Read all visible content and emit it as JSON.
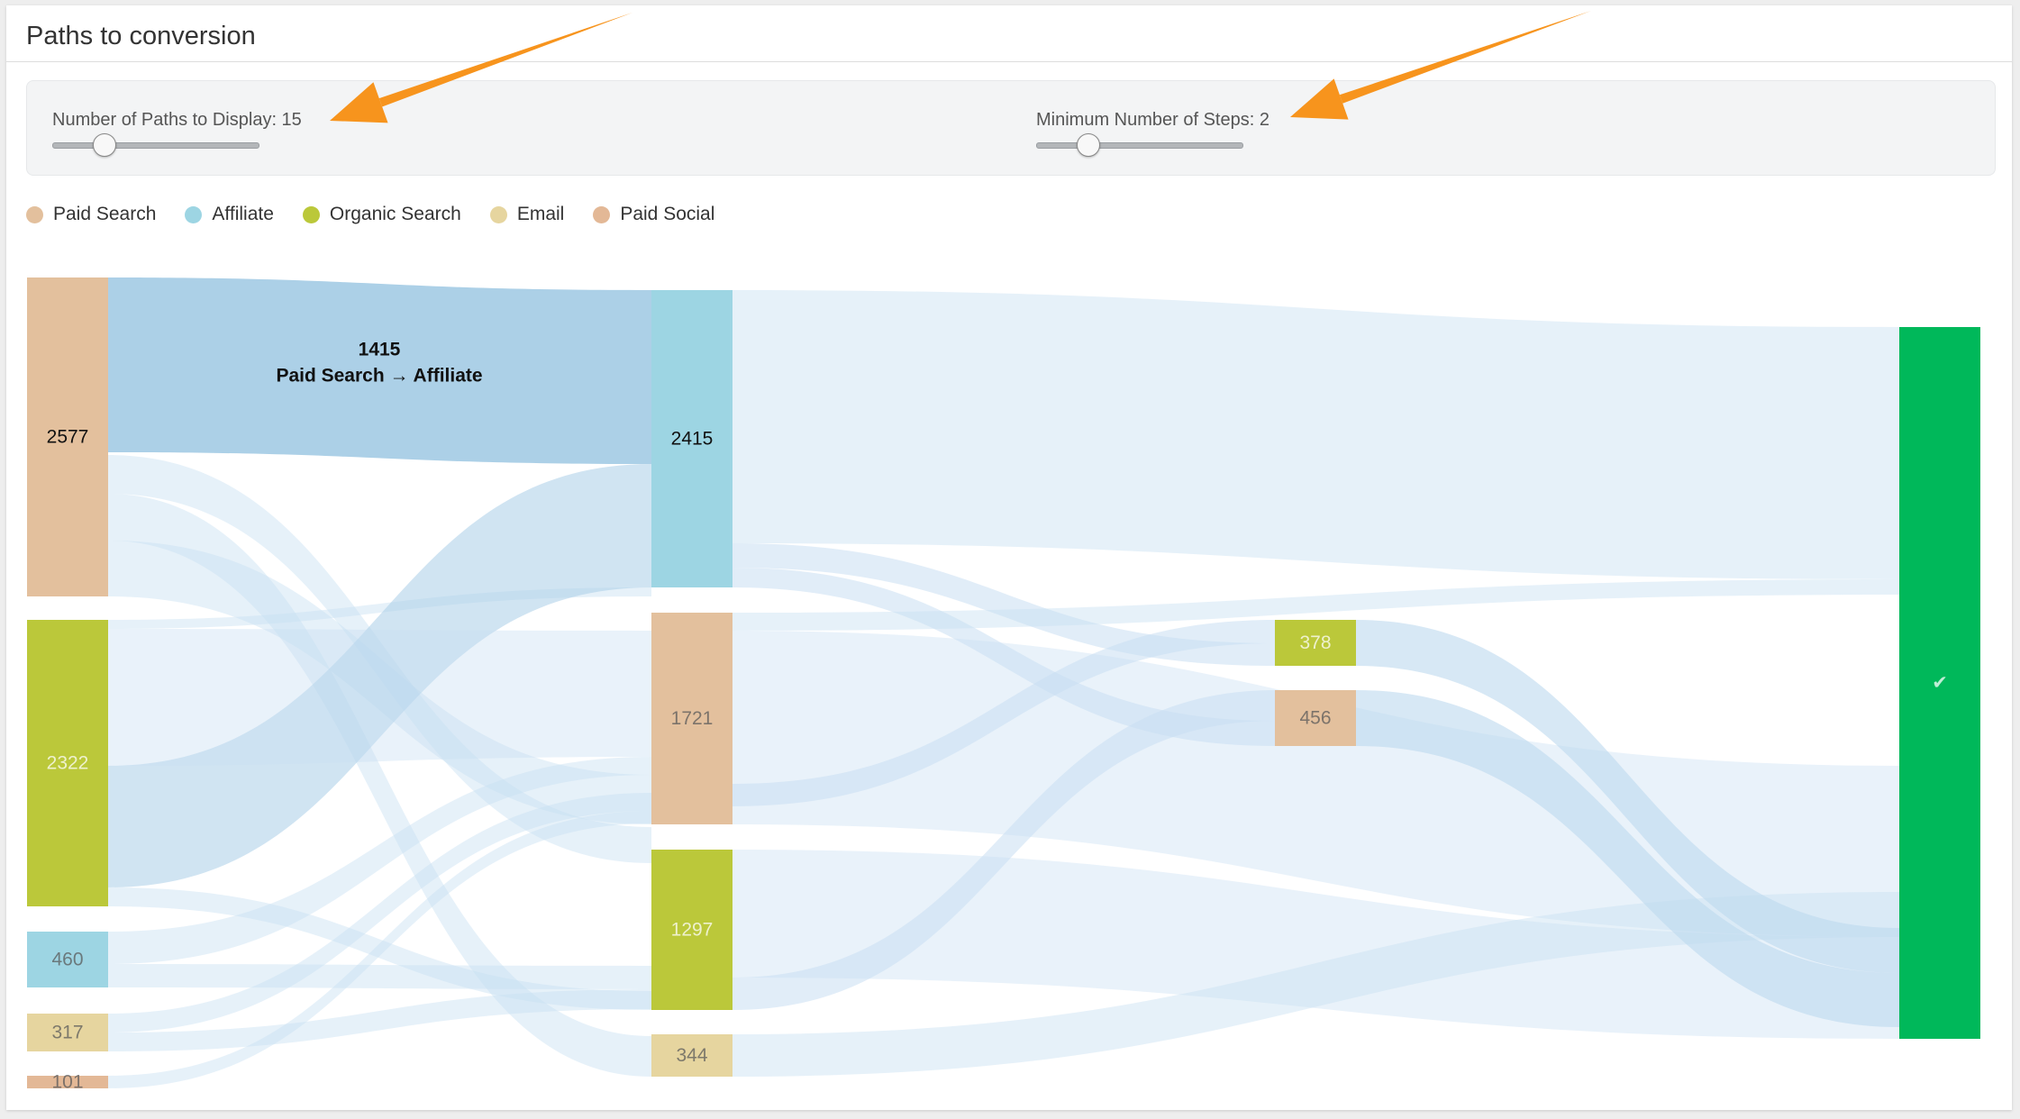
{
  "panel": {
    "title": "Paths to conversion"
  },
  "controls": {
    "paths": {
      "label": "Number of Paths to Display: 15",
      "value": 15,
      "fraction": 0.22
    },
    "steps": {
      "label": "Minimum Number of Steps: 2",
      "value": 2,
      "fraction": 0.22
    }
  },
  "legend": [
    {
      "label": "Paid Search",
      "color": "#e3c09d"
    },
    {
      "label": "Affiliate",
      "color": "#9dd5e3"
    },
    {
      "label": "Organic Search",
      "color": "#bbc83a"
    },
    {
      "label": "Email",
      "color": "#e6d59f"
    },
    {
      "label": "Paid Social",
      "color": "#e3b896"
    }
  ],
  "chart_data": {
    "type": "sankey",
    "nodes": [
      {
        "id": "s1-paid-search",
        "step": 1,
        "channel": "Paid Search",
        "value": 2577,
        "color": "#e3c09d"
      },
      {
        "id": "s1-organic-search",
        "step": 1,
        "channel": "Organic Search",
        "value": 2322,
        "color": "#bbc83a"
      },
      {
        "id": "s1-affiliate",
        "step": 1,
        "channel": "Affiliate",
        "value": 460,
        "color": "#9dd5e3"
      },
      {
        "id": "s1-email",
        "step": 1,
        "channel": "Email",
        "value": 317,
        "color": "#e6d59f"
      },
      {
        "id": "s1-paid-social",
        "step": 1,
        "channel": "Paid Social",
        "value": 101,
        "color": "#e3b896"
      },
      {
        "id": "s2-affiliate",
        "step": 2,
        "channel": "Affiliate",
        "value": 2415,
        "color": "#9dd5e3"
      },
      {
        "id": "s2-paid-search",
        "step": 2,
        "channel": "Paid Search",
        "value": 1721,
        "color": "#e3c09d"
      },
      {
        "id": "s2-organic-search",
        "step": 2,
        "channel": "Organic Search",
        "value": 1297,
        "color": "#bbc83a"
      },
      {
        "id": "s2-email",
        "step": 2,
        "channel": "Email",
        "value": 344,
        "color": "#e6d59f"
      },
      {
        "id": "s3-organic-search",
        "step": 3,
        "channel": "Organic Search",
        "value": 378,
        "color": "#bbc83a"
      },
      {
        "id": "s3-paid-search",
        "step": 3,
        "channel": "Paid Search",
        "value": 456,
        "color": "#e3c09d"
      },
      {
        "id": "conversion",
        "step": 4,
        "channel": "Conversion",
        "value": null,
        "label": "✔",
        "color": "#00b85a"
      }
    ],
    "highlight": {
      "value_label": "1415",
      "path_label": "Paid Search → Affiliate",
      "value": 1415
    }
  }
}
